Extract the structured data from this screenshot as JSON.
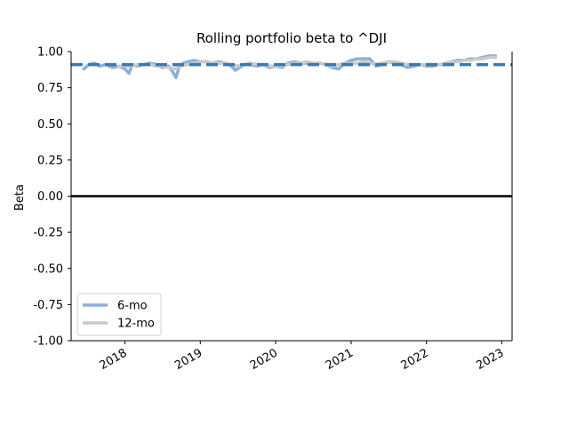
{
  "chart_data": {
    "type": "line",
    "title": "Rolling portfolio beta to ^DJI",
    "xlabel": "",
    "ylabel": "Beta",
    "xlim": [
      "2017-04-15",
      "2023-02-20"
    ],
    "ylim": [
      -1.0,
      1.0
    ],
    "x_ticks": [
      "2018-01-01",
      "2019-01-01",
      "2020-01-01",
      "2021-01-01",
      "2022-01-01",
      "2023-01-01"
    ],
    "x_tick_labels": [
      "2018",
      "2019",
      "2020",
      "2021",
      "2022",
      "2023"
    ],
    "y_ticks": [
      -1.0,
      -0.75,
      -0.5,
      -0.25,
      0.0,
      0.25,
      0.5,
      0.75,
      1.0
    ],
    "y_tick_labels": [
      "-1.00",
      "-0.75",
      "-0.50",
      "-0.25",
      "0.00",
      "0.25",
      "0.50",
      "0.75",
      "1.00"
    ],
    "grid": false,
    "legend_position": "lower-left",
    "reference_lines": [
      {
        "y": 0.91,
        "style": "dashed",
        "color": "#3b78b0"
      },
      {
        "y": 0.0,
        "style": "solid",
        "color": "#000000"
      }
    ],
    "series": [
      {
        "name": "6-mo",
        "color": "#8bb0d4",
        "points": [
          [
            "2017-06-15",
            0.88
          ],
          [
            "2017-07-10",
            0.91
          ],
          [
            "2017-08-05",
            0.92
          ],
          [
            "2017-09-01",
            0.9
          ],
          [
            "2017-10-01",
            0.91
          ],
          [
            "2017-11-01",
            0.89
          ],
          [
            "2017-12-01",
            0.9
          ],
          [
            "2018-01-01",
            0.88
          ],
          [
            "2018-01-20",
            0.85
          ],
          [
            "2018-02-05",
            0.91
          ],
          [
            "2018-03-01",
            0.9
          ],
          [
            "2018-04-01",
            0.91
          ],
          [
            "2018-05-01",
            0.92
          ],
          [
            "2018-06-01",
            0.91
          ],
          [
            "2018-07-01",
            0.89
          ],
          [
            "2018-08-01",
            0.9
          ],
          [
            "2018-08-20",
            0.86
          ],
          [
            "2018-09-05",
            0.82
          ],
          [
            "2018-09-20",
            0.89
          ],
          [
            "2018-10-10",
            0.92
          ],
          [
            "2018-11-01",
            0.93
          ],
          [
            "2018-12-01",
            0.94
          ],
          [
            "2019-01-01",
            0.93
          ],
          [
            "2019-02-01",
            0.93
          ],
          [
            "2019-03-01",
            0.92
          ],
          [
            "2019-04-01",
            0.93
          ],
          [
            "2019-05-01",
            0.92
          ],
          [
            "2019-06-01",
            0.9
          ],
          [
            "2019-06-20",
            0.87
          ],
          [
            "2019-07-10",
            0.89
          ],
          [
            "2019-08-01",
            0.91
          ],
          [
            "2019-09-01",
            0.91
          ],
          [
            "2019-10-01",
            0.9
          ],
          [
            "2019-11-01",
            0.91
          ],
          [
            "2019-12-01",
            0.89
          ],
          [
            "2020-01-01",
            0.9
          ],
          [
            "2020-02-01",
            0.89
          ],
          [
            "2020-03-01",
            0.92
          ],
          [
            "2020-04-01",
            0.93
          ],
          [
            "2020-05-01",
            0.92
          ],
          [
            "2020-06-01",
            0.92
          ],
          [
            "2020-07-01",
            0.91
          ],
          [
            "2020-08-01",
            0.92
          ],
          [
            "2020-09-01",
            0.91
          ],
          [
            "2020-10-01",
            0.89
          ],
          [
            "2020-11-01",
            0.88
          ],
          [
            "2020-12-01",
            0.92
          ],
          [
            "2021-01-01",
            0.94
          ],
          [
            "2021-02-01",
            0.95
          ],
          [
            "2021-03-01",
            0.95
          ],
          [
            "2021-04-01",
            0.95
          ],
          [
            "2021-05-01",
            0.9
          ],
          [
            "2021-06-01",
            0.91
          ],
          [
            "2021-07-01",
            0.93
          ],
          [
            "2021-08-01",
            0.92
          ],
          [
            "2021-09-01",
            0.91
          ],
          [
            "2021-10-01",
            0.89
          ],
          [
            "2021-11-01",
            0.9
          ],
          [
            "2021-12-01",
            0.91
          ],
          [
            "2022-01-01",
            0.9
          ],
          [
            "2022-02-01",
            0.9
          ],
          [
            "2022-03-01",
            0.91
          ],
          [
            "2022-04-01",
            0.91
          ],
          [
            "2022-05-01",
            0.93
          ],
          [
            "2022-06-01",
            0.94
          ],
          [
            "2022-07-01",
            0.94
          ],
          [
            "2022-08-01",
            0.95
          ],
          [
            "2022-09-01",
            0.95
          ],
          [
            "2022-10-01",
            0.96
          ],
          [
            "2022-11-01",
            0.97
          ],
          [
            "2022-12-01",
            0.97
          ]
        ]
      },
      {
        "name": "12-mo",
        "color": "#c9c9c9",
        "points": [
          [
            "2017-12-01",
            0.9
          ],
          [
            "2018-01-01",
            0.9
          ],
          [
            "2018-02-01",
            0.9
          ],
          [
            "2018-03-01",
            0.91
          ],
          [
            "2018-04-01",
            0.91
          ],
          [
            "2018-05-01",
            0.91
          ],
          [
            "2018-06-01",
            0.9
          ],
          [
            "2018-07-01",
            0.9
          ],
          [
            "2018-08-01",
            0.89
          ],
          [
            "2018-09-01",
            0.88
          ],
          [
            "2018-10-01",
            0.9
          ],
          [
            "2018-11-01",
            0.91
          ],
          [
            "2018-12-01",
            0.92
          ],
          [
            "2019-01-01",
            0.93
          ],
          [
            "2019-02-01",
            0.93
          ],
          [
            "2019-03-01",
            0.92
          ],
          [
            "2019-04-01",
            0.92
          ],
          [
            "2019-05-01",
            0.92
          ],
          [
            "2019-06-01",
            0.91
          ],
          [
            "2019-07-01",
            0.9
          ],
          [
            "2019-08-01",
            0.91
          ],
          [
            "2019-09-01",
            0.92
          ],
          [
            "2019-10-01",
            0.91
          ],
          [
            "2019-11-01",
            0.91
          ],
          [
            "2019-12-01",
            0.9
          ],
          [
            "2020-01-01",
            0.9
          ],
          [
            "2020-02-01",
            0.9
          ],
          [
            "2020-03-01",
            0.91
          ],
          [
            "2020-04-01",
            0.92
          ],
          [
            "2020-05-01",
            0.92
          ],
          [
            "2020-06-01",
            0.93
          ],
          [
            "2020-07-01",
            0.92
          ],
          [
            "2020-08-01",
            0.92
          ],
          [
            "2020-09-01",
            0.91
          ],
          [
            "2020-10-01",
            0.9
          ],
          [
            "2020-11-01",
            0.91
          ],
          [
            "2020-12-01",
            0.92
          ],
          [
            "2021-01-01",
            0.92
          ],
          [
            "2021-02-01",
            0.92
          ],
          [
            "2021-03-01",
            0.93
          ],
          [
            "2021-04-01",
            0.92
          ],
          [
            "2021-05-01",
            0.91
          ],
          [
            "2021-06-01",
            0.92
          ],
          [
            "2021-07-01",
            0.93
          ],
          [
            "2021-08-01",
            0.93
          ],
          [
            "2021-09-01",
            0.92
          ],
          [
            "2021-10-01",
            0.91
          ],
          [
            "2021-11-01",
            0.91
          ],
          [
            "2021-12-01",
            0.91
          ],
          [
            "2022-01-01",
            0.91
          ],
          [
            "2022-02-01",
            0.91
          ],
          [
            "2022-03-01",
            0.91
          ],
          [
            "2022-04-01",
            0.92
          ],
          [
            "2022-05-01",
            0.93
          ],
          [
            "2022-06-01",
            0.93
          ],
          [
            "2022-07-01",
            0.94
          ],
          [
            "2022-08-01",
            0.94
          ],
          [
            "2022-09-01",
            0.95
          ],
          [
            "2022-10-01",
            0.95
          ],
          [
            "2022-11-01",
            0.96
          ],
          [
            "2022-12-01",
            0.96
          ]
        ]
      }
    ]
  }
}
